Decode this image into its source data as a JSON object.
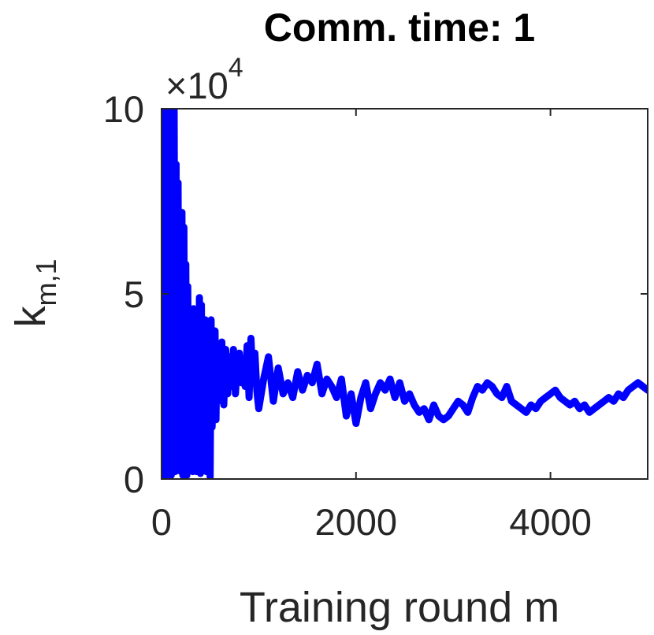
{
  "chart_data": {
    "type": "line",
    "title": "Comm. time: 1",
    "xlabel": "Training round m",
    "ylabel": {
      "main": "k",
      "subscript": "m,1"
    },
    "y_multiplier": {
      "prefix": "×10",
      "exponent": "4"
    },
    "xlim": [
      0,
      5000
    ],
    "ylim": [
      0,
      100000
    ],
    "xticks": [
      {
        "value": 0,
        "label": "0"
      },
      {
        "value": 2000,
        "label": "2000"
      },
      {
        "value": 4000,
        "label": "4000"
      }
    ],
    "yticks": [
      {
        "value": 0,
        "label": "0"
      },
      {
        "value": 50000,
        "label": "5"
      },
      {
        "value": 100000,
        "label": "10"
      }
    ],
    "grid": false,
    "series": [
      {
        "color": "#0000ff",
        "x": [
          0,
          5,
          10,
          15,
          20,
          25,
          30,
          35,
          40,
          45,
          50,
          55,
          60,
          65,
          70,
          75,
          80,
          85,
          90,
          95,
          100,
          110,
          120,
          130,
          140,
          150,
          160,
          170,
          180,
          190,
          200,
          210,
          220,
          230,
          240,
          250,
          260,
          270,
          280,
          290,
          300,
          310,
          320,
          330,
          340,
          350,
          360,
          370,
          380,
          390,
          400,
          410,
          420,
          430,
          440,
          450,
          460,
          470,
          480,
          490,
          500,
          510,
          520,
          530,
          540,
          550,
          560,
          570,
          580,
          590,
          600,
          620,
          640,
          660,
          680,
          700,
          720,
          740,
          760,
          780,
          800,
          820,
          840,
          860,
          880,
          900,
          920,
          940,
          960,
          980,
          1000,
          1050,
          1100,
          1150,
          1200,
          1250,
          1300,
          1350,
          1400,
          1450,
          1500,
          1550,
          1600,
          1650,
          1700,
          1750,
          1800,
          1850,
          1900,
          1950,
          2000,
          2050,
          2100,
          2150,
          2200,
          2250,
          2300,
          2350,
          2400,
          2450,
          2500,
          2550,
          2600,
          2650,
          2700,
          2750,
          2800,
          2850,
          2900,
          2950,
          3000,
          3050,
          3100,
          3150,
          3200,
          3250,
          3300,
          3350,
          3400,
          3450,
          3500,
          3550,
          3600,
          3650,
          3700,
          3750,
          3800,
          3850,
          3900,
          3950,
          4000,
          4050,
          4100,
          4150,
          4200,
          4250,
          4300,
          4350,
          4400,
          4450,
          4500,
          4550,
          4600,
          4650,
          4700,
          4750,
          4800,
          4850,
          4900,
          4950,
          5000
        ],
        "y": [
          42000,
          100000,
          1000,
          98000,
          2000,
          100000,
          1500,
          95000,
          800,
          100000,
          2500,
          92000,
          1000,
          100000,
          3000,
          88000,
          1200,
          99000,
          2000,
          100000,
          1000,
          90000,
          5000,
          100000,
          2000,
          85000,
          3000,
          80000,
          6000,
          62000,
          2000,
          72000,
          1000,
          68000,
          4000,
          58000,
          1000,
          52000,
          6000,
          46000,
          3000,
          42000,
          2000,
          46000,
          8000,
          40000,
          2000,
          44000,
          5000,
          49000,
          1500,
          47000,
          9000,
          41000,
          3000,
          43000,
          2000,
          37000,
          10000,
          35000,
          500,
          43000,
          14000,
          36000,
          18000,
          40000,
          16000,
          35000,
          21000,
          33000,
          22000,
          37000,
          20000,
          35000,
          23000,
          33000,
          25000,
          35000,
          23000,
          32000,
          34000,
          26000,
          30000,
          25000,
          36000,
          22000,
          38000,
          26000,
          34000,
          24000,
          19000,
          27000,
          33000,
          21000,
          30000,
          23000,
          26000,
          22000,
          29000,
          24000,
          28000,
          26000,
          31000,
          23000,
          27000,
          25000,
          22000,
          27000,
          17000,
          23000,
          15000,
          22000,
          26000,
          19000,
          23000,
          26000,
          24000,
          27000,
          22000,
          26000,
          21000,
          23000,
          20000,
          18000,
          19000,
          16000,
          20000,
          17000,
          16000,
          17000,
          19000,
          21000,
          20000,
          18000,
          22000,
          25000,
          24000,
          26000,
          25000,
          23000,
          22000,
          25000,
          21000,
          20000,
          19000,
          18000,
          20000,
          19000,
          21000,
          22000,
          23000,
          24000,
          22000,
          21000,
          20000,
          21000,
          19000,
          20000,
          18000,
          19000,
          20000,
          21000,
          22000,
          21000,
          23000,
          22000,
          24000,
          25000,
          26000,
          25000,
          24000
        ]
      }
    ]
  }
}
